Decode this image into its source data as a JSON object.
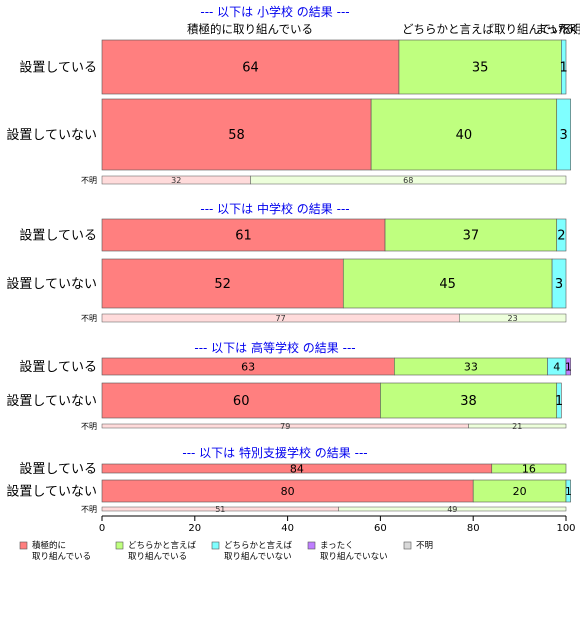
{
  "chart_data": {
    "type": "bar",
    "orientation": "horizontal",
    "stacked": true,
    "xlim": [
      0,
      100
    ],
    "x_ticks": [
      "0",
      "20",
      "40",
      "60",
      "80",
      "100"
    ],
    "series": [
      {
        "name": "積極的に 取り組んでいる",
        "legend_lines": [
          "積極的に",
          "取り組んでいる"
        ],
        "color": "#FF7F7F"
      },
      {
        "name": "どちらかと言えば 取り組んでいる",
        "legend_lines": [
          "どちらかと言えば",
          "取り組んでいる"
        ],
        "color": "#BFFF7F"
      },
      {
        "name": "どちらかと言えば 取り組んでいない",
        "legend_lines": [
          "どちらかと言えば",
          "取り組んでいない"
        ],
        "color": "#7FFFFF"
      },
      {
        "name": "まったく 取り組んでいない",
        "legend_lines": [
          "まったく",
          "取り組んでいない"
        ],
        "color": "#BF7FFF"
      },
      {
        "name": "不明",
        "legend_lines": [
          "不明"
        ],
        "color": "#D9D9D9"
      }
    ],
    "top_headers": [
      "積極的に取り組んでいる",
      "どちらかと言えば取り組んでいる",
      "まったく",
      "不明"
    ],
    "groups": [
      {
        "title": "--- 以下は 小学校 の結果 ---",
        "rows": [
          {
            "label": "設置している",
            "values": [
              64,
              35,
              1,
              0,
              0
            ],
            "labels": [
              "64",
              "35",
              "1",
              "",
              ""
            ]
          },
          {
            "label": "設置していない",
            "values": [
              58,
              40,
              3,
              0,
              0
            ],
            "labels": [
              "58",
              "40",
              "3",
              "",
              ""
            ]
          }
        ],
        "unknown": {
          "label": "不明",
          "values": [
            32,
            68
          ],
          "labels": [
            "32",
            "68"
          ]
        }
      },
      {
        "title": "--- 以下は 中学校 の結果 ---",
        "rows": [
          {
            "label": "設置している",
            "values": [
              61,
              37,
              2,
              0,
              0
            ],
            "labels": [
              "61",
              "37",
              "2",
              "",
              ""
            ]
          },
          {
            "label": "設置していない",
            "values": [
              52,
              45,
              3,
              0,
              0
            ],
            "labels": [
              "52",
              "45",
              "3",
              "",
              ""
            ]
          }
        ],
        "unknown": {
          "label": "不明",
          "values": [
            77,
            23
          ],
          "labels": [
            "77",
            "23"
          ]
        }
      },
      {
        "title": "--- 以下は 高等学校 の結果 ---",
        "rows": [
          {
            "label": "設置している",
            "values": [
              63,
              33,
              4,
              1,
              0
            ],
            "labels": [
              "63",
              "33",
              "4",
              "1",
              ""
            ]
          },
          {
            "label": "設置していない",
            "values": [
              60,
              38,
              1,
              0,
              0
            ],
            "labels": [
              "60",
              "38",
              "1",
              "",
              ""
            ]
          }
        ],
        "unknown": {
          "label": "不明",
          "values": [
            79,
            21
          ],
          "labels": [
            "79",
            "21"
          ]
        }
      },
      {
        "title": "--- 以下は 特別支援学校 の結果 ---",
        "rows": [
          {
            "label": "設置している",
            "values": [
              84,
              16,
              0,
              0,
              0
            ],
            "labels": [
              "84",
              "16",
              "",
              "",
              ""
            ]
          },
          {
            "label": "設置していない",
            "values": [
              80,
              20,
              1,
              0,
              0
            ],
            "labels": [
              "80",
              "20",
              "1",
              "",
              ""
            ]
          }
        ],
        "unknown": {
          "label": "不明",
          "values": [
            51,
            49
          ],
          "labels": [
            "51",
            "49"
          ]
        }
      }
    ]
  }
}
